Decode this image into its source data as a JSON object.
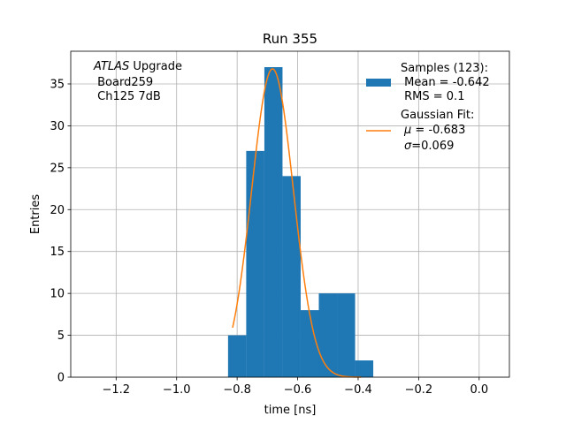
{
  "chart_data": {
    "type": "histogram",
    "title": "Run 355",
    "xlabel": "time [ns]",
    "ylabel": "Entries",
    "xlim": [
      -1.35,
      0.1
    ],
    "ylim": [
      0,
      38.9
    ],
    "xticks": [
      -1.2,
      -1.0,
      -0.8,
      -0.6,
      -0.4,
      -0.2,
      0.0
    ],
    "xtick_labels": [
      "−1.2",
      "−1.0",
      "−0.8",
      "−0.6",
      "−0.4",
      "−0.2",
      "0.0"
    ],
    "yticks": [
      0,
      5,
      10,
      15,
      20,
      25,
      30,
      35
    ],
    "ytick_labels": [
      "0",
      "5",
      "10",
      "15",
      "20",
      "25",
      "30",
      "35"
    ],
    "grid": true,
    "bar_color": "#1f77b4",
    "fit_color": "#ff7f0e",
    "bins": [
      {
        "x0": -0.83,
        "x1": -0.77,
        "count": 5
      },
      {
        "x0": -0.77,
        "x1": -0.71,
        "count": 27
      },
      {
        "x0": -0.71,
        "x1": -0.65,
        "count": 37
      },
      {
        "x0": -0.65,
        "x1": -0.59,
        "count": 24
      },
      {
        "x0": -0.59,
        "x1": -0.53,
        "count": 8
      },
      {
        "x0": -0.53,
        "x1": -0.47,
        "count": 10
      },
      {
        "x0": -0.47,
        "x1": -0.41,
        "count": 10
      },
      {
        "x0": -0.41,
        "x1": -0.35,
        "count": 2
      }
    ],
    "fit": {
      "name": "Gaussian Fit",
      "mu": -0.683,
      "sigma": 0.069,
      "amplitude": 36.8,
      "x_range": [
        -0.815,
        -0.39
      ]
    },
    "legend_position": "top-right",
    "legend": {
      "samples": [
        "Samples (123):",
        " Mean = -0.642",
        " RMS = 0.1"
      ],
      "fit_title": "Gaussian Fit:",
      "fit_mu_symbol": "μ",
      "fit_mu_value": " = -0.683",
      "fit_sigma_symbol": "σ",
      "fit_sigma_value": "=0.069"
    },
    "annotation": {
      "atlas": "ATLAS",
      "upgrade": " Upgrade",
      "line2": " Board259",
      "line3": " Ch125 7dB"
    }
  }
}
